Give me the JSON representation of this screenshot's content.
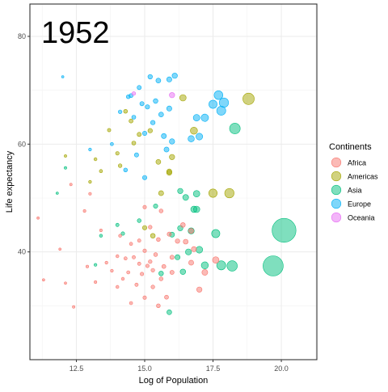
{
  "chart_data": {
    "type": "scatter",
    "title": "",
    "annotation": "1952",
    "xlabel": "Log of Population",
    "ylabel": "Life expectancy",
    "xlim": [
      10.8,
      21.3
    ],
    "ylim": [
      20,
      86
    ],
    "x_ticks": [
      12.5,
      15.0,
      17.5,
      20.0
    ],
    "x_tick_labels": [
      "12.5",
      "15.0",
      "17.5",
      "20.0"
    ],
    "y_ticks": [
      40,
      60,
      80
    ],
    "y_tick_labels": [
      "40",
      "60",
      "80"
    ],
    "grid": true,
    "legend": {
      "title": "Continents",
      "position": "right"
    },
    "size_variable": "population",
    "series": [
      {
        "name": "Africa",
        "color": "#F8766D",
        "points": [
          [
            11.1,
            46.3,
            0.02
          ],
          [
            11.3,
            34.8,
            0.02
          ],
          [
            11.9,
            40.5,
            0.02
          ],
          [
            12.1,
            34.2,
            0.02
          ],
          [
            12.3,
            52.5,
            0.03
          ],
          [
            12.4,
            29.8,
            0.03
          ],
          [
            12.8,
            47.6,
            0.04
          ],
          [
            12.9,
            37.3,
            0.04
          ],
          [
            13.0,
            50.8,
            0.05
          ],
          [
            13.2,
            34.4,
            0.05
          ],
          [
            13.4,
            44.0,
            0.05
          ],
          [
            13.6,
            38.0,
            0.06
          ],
          [
            13.8,
            36.5,
            0.07
          ],
          [
            14.0,
            39.2,
            0.08
          ],
          [
            14.0,
            33.5,
            0.08
          ],
          [
            14.1,
            43.0,
            0.09
          ],
          [
            14.2,
            35.0,
            0.09
          ],
          [
            14.3,
            38.8,
            0.1
          ],
          [
            14.4,
            36.2,
            0.11
          ],
          [
            14.5,
            41.5,
            0.12
          ],
          [
            14.5,
            30.5,
            0.12
          ],
          [
            14.6,
            39.0,
            0.13
          ],
          [
            14.7,
            33.9,
            0.14
          ],
          [
            14.8,
            37.8,
            0.15
          ],
          [
            14.8,
            42.1,
            0.15
          ],
          [
            14.9,
            35.9,
            0.16
          ],
          [
            15.0,
            40.2,
            0.18
          ],
          [
            15.0,
            31.5,
            0.18
          ],
          [
            15.0,
            48.3,
            0.18
          ],
          [
            15.1,
            37.4,
            0.19
          ],
          [
            15.2,
            44.6,
            0.2
          ],
          [
            15.2,
            38.2,
            0.2
          ],
          [
            15.3,
            33.5,
            0.21
          ],
          [
            15.3,
            36.6,
            0.21
          ],
          [
            15.4,
            39.5,
            0.23
          ],
          [
            15.5,
            42.3,
            0.25
          ],
          [
            15.5,
            30.0,
            0.25
          ],
          [
            15.6,
            35.0,
            0.27
          ],
          [
            15.6,
            47.6,
            0.27
          ],
          [
            15.7,
            37.3,
            0.29
          ],
          [
            15.8,
            31.6,
            0.31
          ],
          [
            15.9,
            43.3,
            0.33
          ],
          [
            16.0,
            39.0,
            0.36
          ],
          [
            16.0,
            36.2,
            0.36
          ],
          [
            16.2,
            42.0,
            0.42
          ],
          [
            16.4,
            45.0,
            0.5
          ],
          [
            16.5,
            41.9,
            0.55
          ],
          [
            16.7,
            43.9,
            0.64
          ],
          [
            16.7,
            38.0,
            0.64
          ],
          [
            16.8,
            40.5,
            0.7
          ],
          [
            17.0,
            33.0,
            0.8
          ],
          [
            17.2,
            36.2,
            1.0
          ],
          [
            17.6,
            38.5,
            1.4
          ]
        ]
      },
      {
        "name": "Americas",
        "color": "#A3A500",
        "points": [
          [
            12.1,
            57.8,
            0.03
          ],
          [
            13.0,
            53.0,
            0.06
          ],
          [
            13.2,
            57.2,
            0.08
          ],
          [
            13.4,
            55.0,
            0.1
          ],
          [
            13.7,
            62.6,
            0.13
          ],
          [
            14.0,
            58.3,
            0.18
          ],
          [
            14.1,
            56.0,
            0.2
          ],
          [
            14.3,
            66.1,
            0.24
          ],
          [
            14.5,
            64.3,
            0.28
          ],
          [
            14.6,
            60.2,
            0.3
          ],
          [
            14.8,
            61.8,
            0.34
          ],
          [
            15.0,
            44.5,
            0.39
          ],
          [
            15.2,
            62.5,
            0.47
          ],
          [
            15.3,
            43.0,
            0.49
          ],
          [
            15.5,
            56.7,
            0.57
          ],
          [
            15.6,
            50.9,
            0.6
          ],
          [
            15.9,
            54.9,
            0.7
          ],
          [
            15.9,
            54.7,
            0.72
          ],
          [
            16.0,
            57.6,
            0.78
          ],
          [
            16.4,
            68.6,
            1.4
          ],
          [
            16.8,
            62.5,
            1.8
          ],
          [
            17.5,
            50.9,
            2.8
          ],
          [
            18.1,
            50.9,
            3.7
          ],
          [
            18.8,
            68.4,
            6.0
          ]
        ]
      },
      {
        "name": "Asia",
        "color": "#00BF7D",
        "points": [
          [
            11.8,
            50.9,
            0.02
          ],
          [
            12.1,
            55.6,
            0.03
          ],
          [
            13.2,
            37.6,
            0.07
          ],
          [
            13.4,
            43.0,
            0.09
          ],
          [
            14.0,
            45.0,
            0.14
          ],
          [
            14.2,
            43.4,
            0.16
          ],
          [
            14.8,
            45.8,
            0.26
          ],
          [
            15.4,
            48.5,
            0.4
          ],
          [
            15.6,
            36.0,
            0.48
          ],
          [
            15.9,
            28.8,
            0.56
          ],
          [
            16.0,
            43.2,
            0.62
          ],
          [
            16.2,
            39.0,
            0.72
          ],
          [
            16.3,
            44.4,
            0.79
          ],
          [
            16.3,
            51.3,
            0.8
          ],
          [
            16.4,
            36.3,
            0.87
          ],
          [
            16.5,
            50.1,
            0.97
          ],
          [
            16.6,
            40.0,
            1.1
          ],
          [
            16.7,
            43.9,
            1.2
          ],
          [
            16.8,
            47.9,
            1.3
          ],
          [
            16.9,
            50.8,
            1.4
          ],
          [
            16.9,
            47.9,
            1.4
          ],
          [
            17.0,
            40.4,
            1.6
          ],
          [
            17.2,
            37.5,
            1.8
          ],
          [
            17.6,
            43.4,
            2.7
          ],
          [
            17.8,
            37.5,
            3.3
          ],
          [
            18.2,
            37.4,
            4.7
          ],
          [
            18.3,
            62.9,
            5.1
          ],
          [
            19.7,
            37.4,
            22.0
          ],
          [
            20.1,
            44.0,
            32.0
          ]
        ]
      },
      {
        "name": "Europe",
        "color": "#00B0F6",
        "points": [
          [
            12.0,
            72.5,
            0.02
          ],
          [
            13.0,
            59.0,
            0.06
          ],
          [
            13.8,
            60.0,
            0.12
          ],
          [
            14.1,
            66.0,
            0.2
          ],
          [
            14.3,
            55.2,
            0.24
          ],
          [
            14.4,
            68.8,
            0.26
          ],
          [
            14.5,
            69.0,
            0.28
          ],
          [
            14.6,
            65.0,
            0.3
          ],
          [
            14.7,
            58.0,
            0.32
          ],
          [
            14.8,
            70.5,
            0.34
          ],
          [
            14.9,
            67.5,
            0.36
          ],
          [
            15.0,
            53.8,
            0.38
          ],
          [
            15.0,
            62.0,
            0.39
          ],
          [
            15.1,
            66.9,
            0.4
          ],
          [
            15.2,
            72.5,
            0.43
          ],
          [
            15.3,
            64.0,
            0.47
          ],
          [
            15.4,
            68.0,
            0.5
          ],
          [
            15.5,
            71.8,
            0.55
          ],
          [
            15.6,
            65.5,
            0.58
          ],
          [
            15.7,
            61.5,
            0.62
          ],
          [
            15.8,
            59.0,
            0.66
          ],
          [
            15.9,
            72.0,
            0.7
          ],
          [
            15.9,
            66.6,
            0.71
          ],
          [
            16.0,
            60.5,
            0.75
          ],
          [
            16.1,
            72.7,
            0.8
          ],
          [
            16.7,
            61.0,
            1.3
          ],
          [
            16.9,
            64.9,
            1.5
          ],
          [
            17.0,
            61.4,
            1.6
          ],
          [
            17.2,
            64.9,
            2.0
          ],
          [
            17.5,
            67.4,
            2.6
          ],
          [
            17.7,
            69.1,
            3.0
          ],
          [
            17.8,
            66.2,
            3.3
          ],
          [
            17.9,
            67.7,
            3.6
          ]
        ]
      },
      {
        "name": "Oceania",
        "color": "#E76BF3",
        "points": [
          [
            14.6,
            69.4,
            0.2
          ],
          [
            16.0,
            69.1,
            0.8
          ]
        ]
      }
    ]
  }
}
